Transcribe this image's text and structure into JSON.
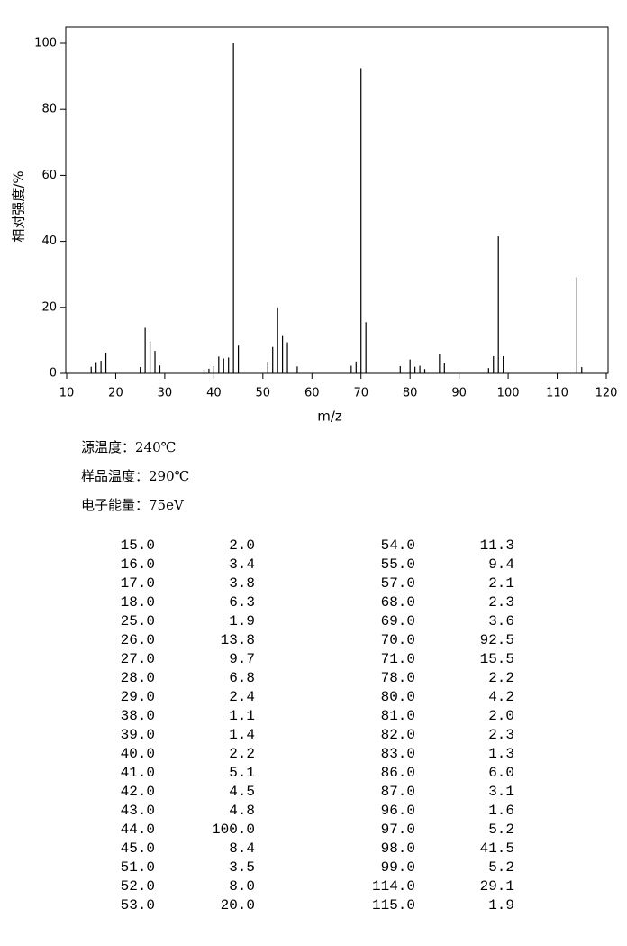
{
  "chart_data": {
    "type": "bar",
    "x_label": "m/z",
    "y_label": "相对强度/%",
    "x": [
      15,
      16,
      17,
      18,
      25,
      26,
      27,
      28,
      29,
      38,
      39,
      40,
      41,
      42,
      43,
      44,
      45,
      51,
      52,
      53,
      54,
      55,
      57,
      68,
      69,
      70,
      71,
      78,
      80,
      81,
      82,
      83,
      86,
      87,
      96,
      97,
      98,
      99,
      114,
      115
    ],
    "values": [
      2.0,
      3.4,
      3.8,
      6.3,
      1.9,
      13.8,
      9.7,
      6.8,
      2.4,
      1.1,
      1.4,
      2.2,
      5.1,
      4.5,
      4.8,
      100.0,
      8.4,
      3.5,
      8.0,
      20.0,
      11.3,
      9.4,
      2.1,
      2.3,
      3.6,
      92.5,
      15.5,
      2.2,
      4.2,
      2.0,
      2.3,
      1.3,
      6.0,
      3.1,
      1.6,
      5.2,
      41.5,
      5.2,
      29.1,
      1.9
    ],
    "color": "#000000",
    "xlim": [
      10,
      120
    ],
    "xticks": [
      10,
      20,
      30,
      40,
      50,
      60,
      70,
      80,
      90,
      100,
      110,
      120
    ],
    "ylim": [
      0,
      100
    ],
    "yticks": [
      0,
      20,
      40,
      60,
      80,
      100
    ]
  },
  "info": [
    "源温度：240℃",
    "样品温度：290℃",
    "电子能量：75eV"
  ],
  "table": {
    "left": [
      [
        "15.0",
        "2.0"
      ],
      [
        "16.0",
        "3.4"
      ],
      [
        "17.0",
        "3.8"
      ],
      [
        "18.0",
        "6.3"
      ],
      [
        "25.0",
        "1.9"
      ],
      [
        "26.0",
        "13.8"
      ],
      [
        "27.0",
        "9.7"
      ],
      [
        "28.0",
        "6.8"
      ],
      [
        "29.0",
        "2.4"
      ],
      [
        "38.0",
        "1.1"
      ],
      [
        "39.0",
        "1.4"
      ],
      [
        "40.0",
        "2.2"
      ],
      [
        "41.0",
        "5.1"
      ],
      [
        "42.0",
        "4.5"
      ],
      [
        "43.0",
        "4.8"
      ],
      [
        "44.0",
        "100.0"
      ],
      [
        "45.0",
        "8.4"
      ],
      [
        "51.0",
        "3.5"
      ],
      [
        "52.0",
        "8.0"
      ],
      [
        "53.0",
        "20.0"
      ]
    ],
    "right": [
      [
        "54.0",
        "11.3"
      ],
      [
        "55.0",
        "9.4"
      ],
      [
        "57.0",
        "2.1"
      ],
      [
        "68.0",
        "2.3"
      ],
      [
        "69.0",
        "3.6"
      ],
      [
        "70.0",
        "92.5"
      ],
      [
        "71.0",
        "15.5"
      ],
      [
        "78.0",
        "2.2"
      ],
      [
        "80.0",
        "4.2"
      ],
      [
        "81.0",
        "2.0"
      ],
      [
        "82.0",
        "2.3"
      ],
      [
        "83.0",
        "1.3"
      ],
      [
        "86.0",
        "6.0"
      ],
      [
        "87.0",
        "3.1"
      ],
      [
        "96.0",
        "1.6"
      ],
      [
        "97.0",
        "5.2"
      ],
      [
        "98.0",
        "41.5"
      ],
      [
        "99.0",
        "5.2"
      ],
      [
        "114.0",
        "29.1"
      ],
      [
        "115.0",
        "1.9"
      ]
    ]
  }
}
